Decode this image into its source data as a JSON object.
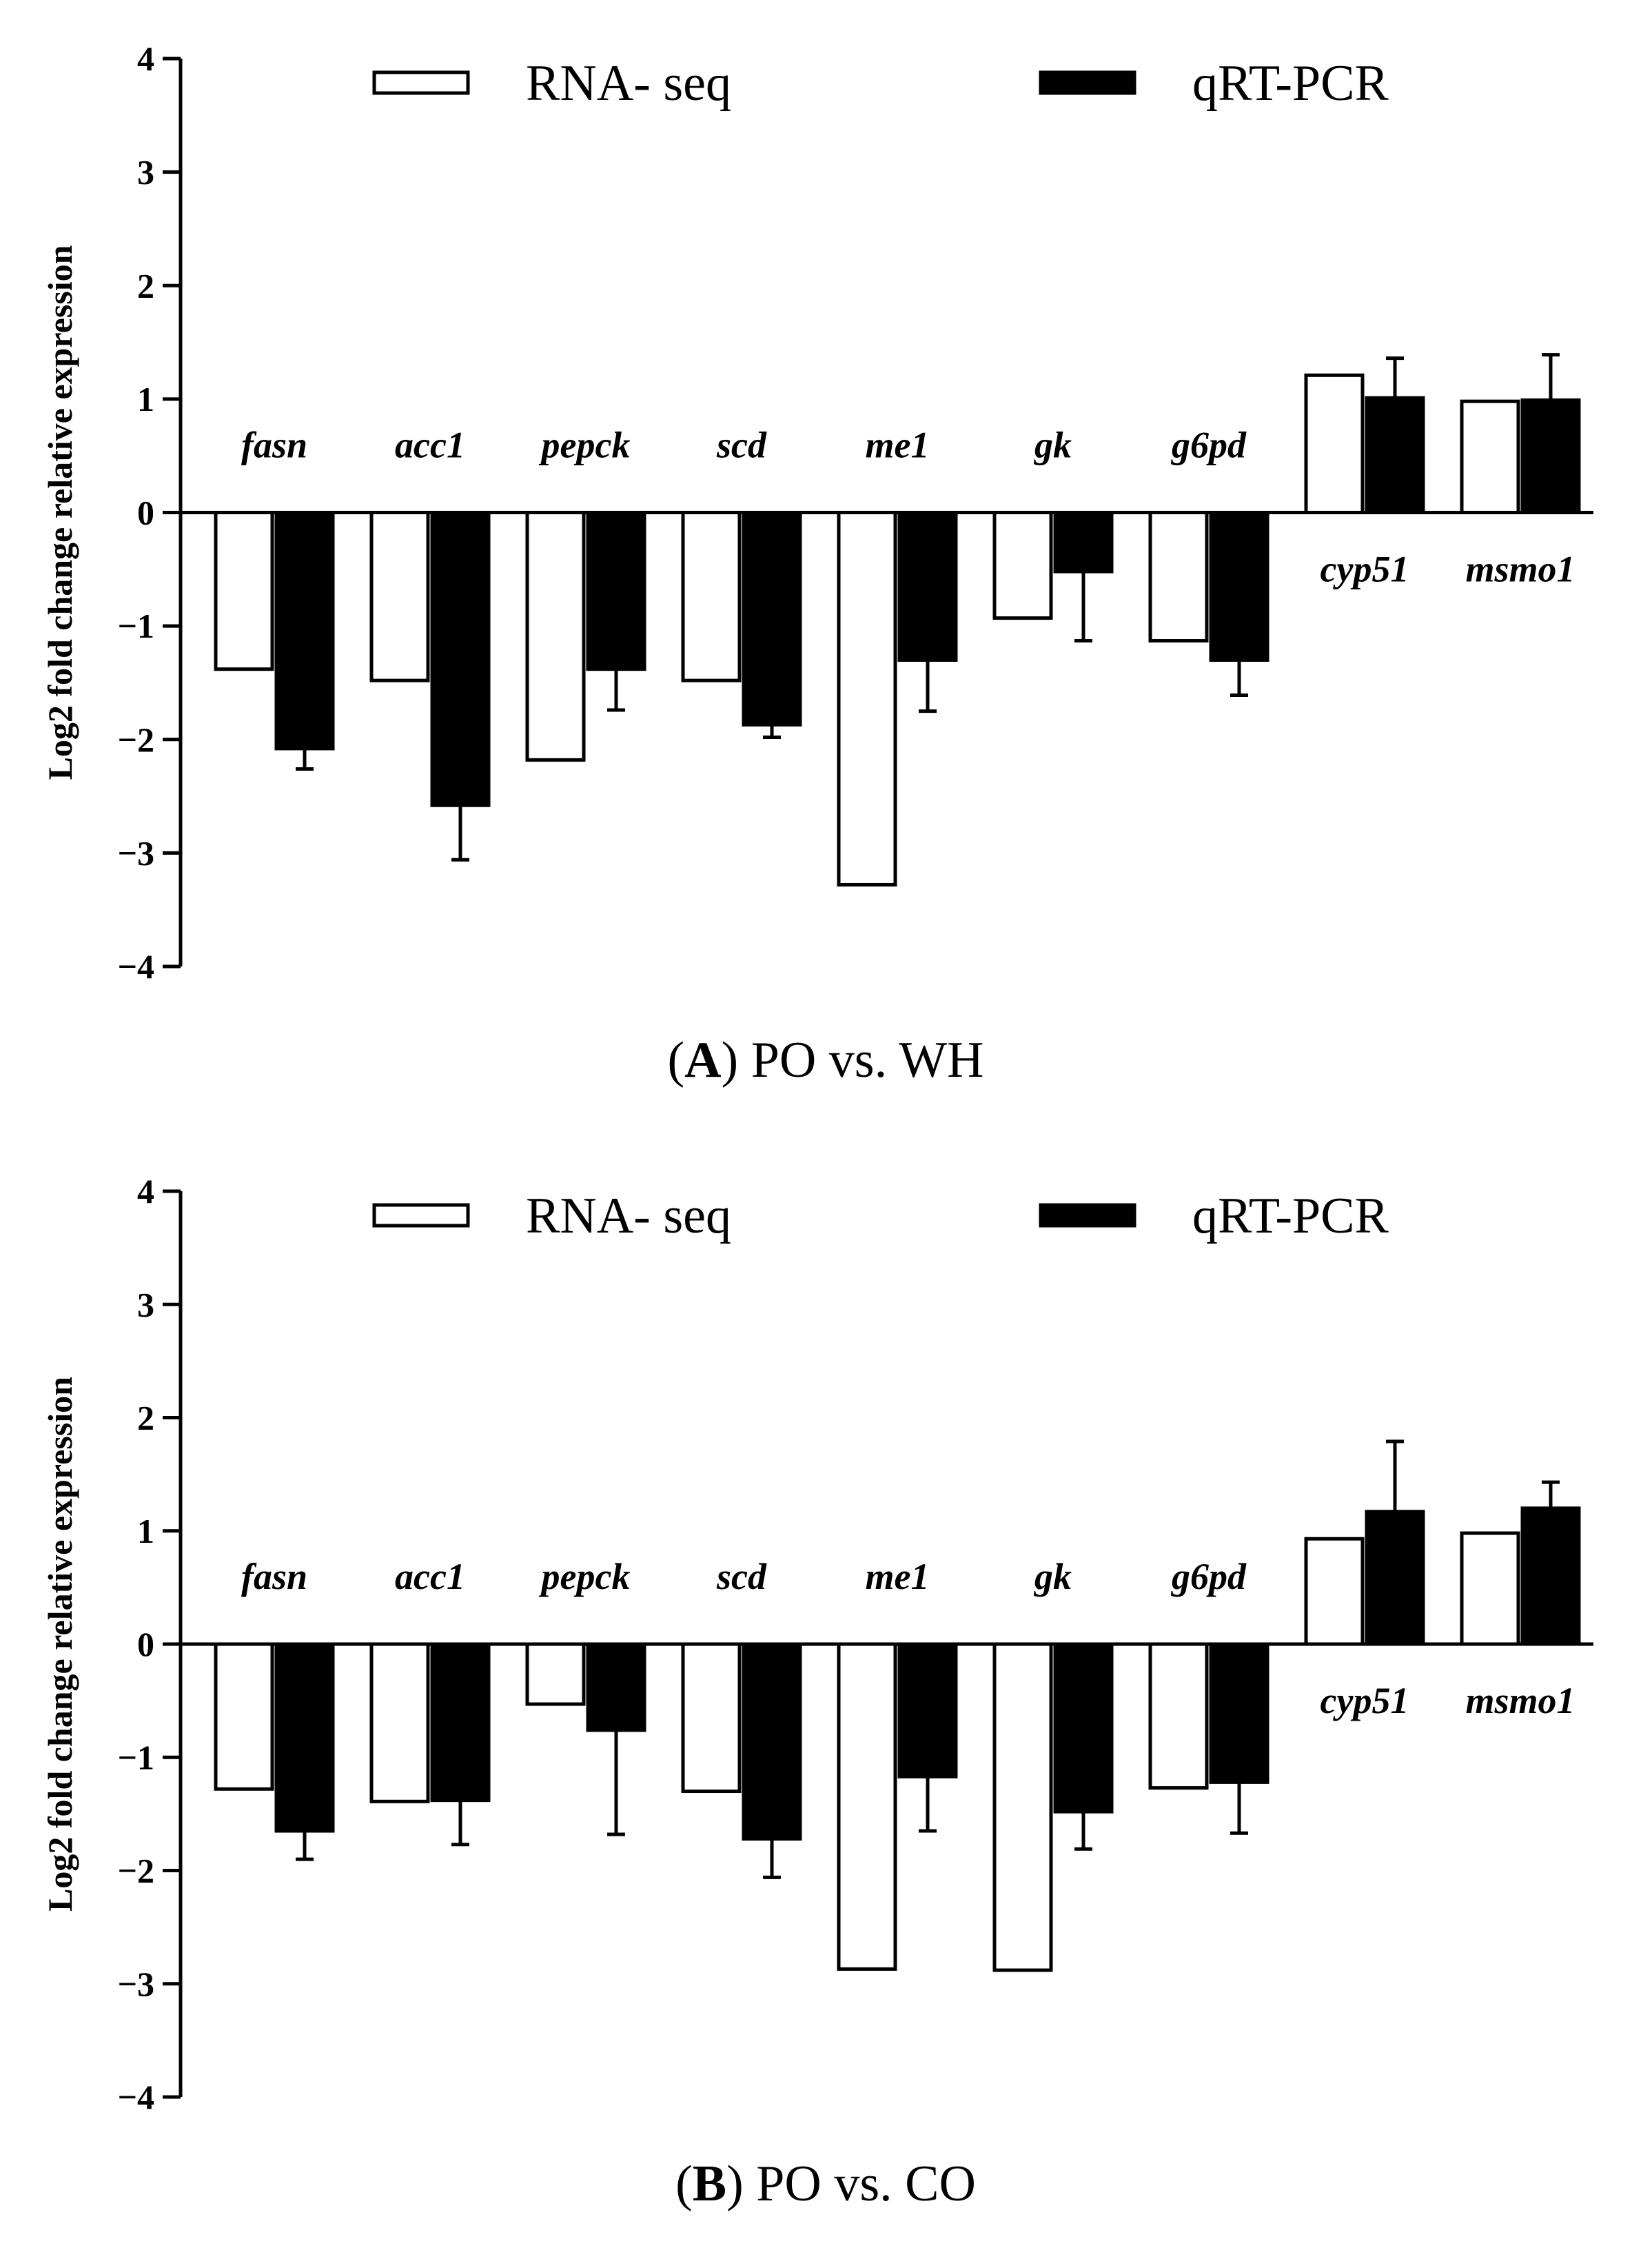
{
  "chart_data": [
    {
      "type": "bar",
      "panel": "A",
      "caption_label": "A",
      "caption_text": "PO vs. WH",
      "categories": [
        "fasn",
        "acc1",
        "pepck",
        "scd",
        "me1",
        "gk",
        "g6pd",
        "cyp51",
        "msmo1"
      ],
      "series": [
        {
          "name": "RNA- seq",
          "values": [
            -1.38,
            -1.48,
            -2.18,
            -1.48,
            -3.28,
            -0.93,
            -1.13,
            1.21,
            0.98
          ],
          "errors": [
            null,
            null,
            null,
            null,
            null,
            null,
            null,
            null,
            null
          ]
        },
        {
          "name": "qRT-PCR",
          "values": [
            -2.08,
            -2.58,
            -1.38,
            -1.87,
            -1.3,
            -0.52,
            -1.3,
            1.01,
            0.99
          ],
          "errors": [
            0.18,
            0.48,
            0.36,
            0.11,
            0.45,
            0.61,
            0.31,
            0.35,
            0.4
          ]
        }
      ],
      "ylabel": "Log2 fold change relative expression",
      "ylim": [
        -4,
        4
      ],
      "yticks": [
        "4",
        "3",
        "2",
        "1",
        "0",
        "−1",
        "−2",
        "−3",
        "−4"
      ],
      "legend": "top",
      "colors": {
        "RNA- seq": "#ffffff",
        "qRT-PCR": "#000000"
      }
    },
    {
      "type": "bar",
      "panel": "B",
      "caption_label": "B",
      "caption_text": "PO vs. CO",
      "categories": [
        "fasn",
        "acc1",
        "pepck",
        "scd",
        "me1",
        "gk",
        "g6pd",
        "cyp51",
        "msmo1"
      ],
      "series": [
        {
          "name": "RNA- seq",
          "values": [
            -1.28,
            -1.39,
            -0.53,
            -1.3,
            -2.87,
            -2.88,
            -1.27,
            0.93,
            0.98
          ],
          "errors": [
            null,
            null,
            null,
            null,
            null,
            null,
            null,
            null,
            null
          ]
        },
        {
          "name": "qRT-PCR",
          "values": [
            -1.65,
            -1.38,
            -0.76,
            -1.72,
            -1.17,
            -1.48,
            -1.22,
            1.17,
            1.2
          ],
          "errors": [
            0.25,
            0.39,
            0.92,
            0.34,
            0.48,
            0.33,
            0.45,
            0.62,
            0.23
          ]
        }
      ],
      "ylabel": "Log2 fold change relative expression",
      "ylim": [
        -4,
        4
      ],
      "yticks": [
        "4",
        "3",
        "2",
        "1",
        "0",
        "−1",
        "−2",
        "−3",
        "−4"
      ],
      "legend": "top",
      "colors": {
        "RNA- seq": "#ffffff",
        "qRT-PCR": "#000000"
      }
    }
  ]
}
